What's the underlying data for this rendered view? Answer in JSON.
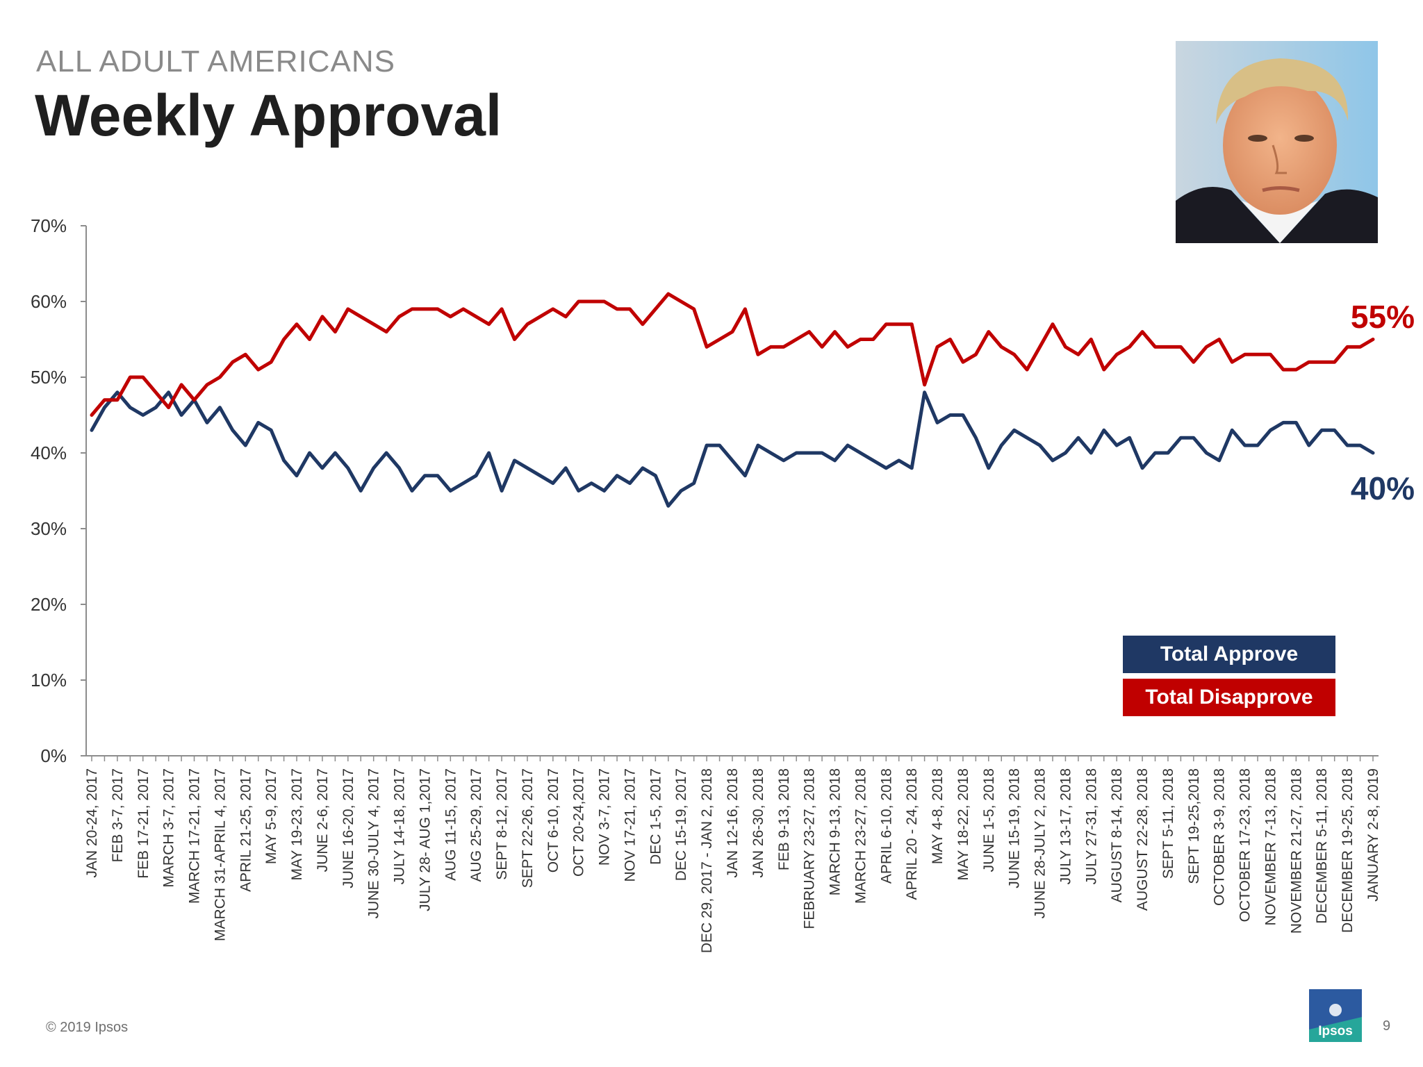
{
  "header": {
    "subtitle": "ALL ADULT AMERICANS",
    "title": "Weekly Approval"
  },
  "chart_data": {
    "type": "line",
    "title": "Weekly Approval",
    "ylim": [
      0,
      70
    ],
    "y_ticks": [
      "0%",
      "10%",
      "20%",
      "30%",
      "40%",
      "50%",
      "60%",
      "70%"
    ],
    "x_tick_labels": [
      "JAN 20-24, 2017",
      "FEB 3-7, 2017",
      "FEB 17-21, 2017",
      "MARCH 3-7, 2017",
      "MARCH 17-21, 2017",
      "MARCH 31-APRIL 4, 2017",
      "APRIL 21-25, 2017",
      "MAY 5-9, 2017",
      "MAY 19-23, 2017",
      "JUNE 2-6, 2017",
      "JUNE 16-20, 2017",
      "JUNE 30-JULY 4, 2017",
      "JULY 14-18, 2017",
      "JULY 28- AUG 1,2017",
      "AUG 11-15, 2017",
      "AUG 25-29, 2017",
      "SEPT 8-12, 2017",
      "SEPT 22-26, 2017",
      "OCT 6-10, 2017",
      "OCT 20-24,2017",
      "NOV 3-7, 2017",
      "NOV 17-21, 2017",
      "DEC 1-5, 2017",
      "DEC 15-19, 2017",
      "DEC 29, 2017 - JAN 2, 2018",
      "JAN 12-16, 2018",
      "JAN 26-30, 2018",
      "FEB 9-13, 2018",
      "FEBRUARY 23-27, 2018",
      "MARCH 9-13, 2018",
      "MARCH 23-27, 2018",
      "APRIL 6-10, 2018",
      "APRIL 20 - 24, 2018",
      "MAY 4-8, 2018",
      "MAY 18-22, 2018",
      "JUNE 1-5, 2018",
      "JUNE 15-19, 2018",
      "JUNE 28-JULY 2, 2018",
      "JULY 13-17, 2018",
      "JULY 27-31, 2018",
      "AUGUST 8-14, 2018",
      "AUGUST 22-28, 2018",
      "SEPT 5-11, 2018",
      "SEPT 19-25,2018",
      "OCTOBER 3-9, 2018",
      "OCTOBER 17-23, 2018",
      "NOVEMBER 7-13, 2018",
      "NOVEMBER 21-27, 2018",
      "DECEMBER 5-11, 2018",
      "DECEMBER 19-25, 2018",
      "JANUARY 2-8, 2019"
    ],
    "series": [
      {
        "name": "Total Approve",
        "color": "#1f3864",
        "values": [
          43,
          46,
          48,
          46,
          45,
          46,
          48,
          45,
          47,
          44,
          46,
          43,
          41,
          44,
          43,
          39,
          37,
          40,
          38,
          40,
          38,
          35,
          38,
          40,
          38,
          35,
          37,
          37,
          35,
          36,
          37,
          40,
          35,
          39,
          38,
          37,
          36,
          38,
          35,
          36,
          35,
          37,
          36,
          38,
          37,
          33,
          35,
          36,
          41,
          41,
          39,
          37,
          41,
          40,
          39,
          40,
          40,
          40,
          39,
          41,
          40,
          39,
          38,
          39,
          38,
          48,
          44,
          45,
          45,
          42,
          38,
          41,
          43,
          42,
          41,
          39,
          40,
          42,
          40,
          43,
          41,
          42,
          38,
          40,
          40,
          42,
          42,
          40,
          39,
          43,
          41,
          41,
          43,
          44,
          44,
          41,
          43,
          43,
          41,
          41,
          40
        ]
      },
      {
        "name": "Total Disapprove",
        "color": "#c00000",
        "values": [
          45,
          47,
          47,
          50,
          50,
          48,
          46,
          49,
          47,
          49,
          50,
          52,
          53,
          51,
          52,
          55,
          57,
          55,
          58,
          56,
          59,
          58,
          57,
          56,
          58,
          59,
          59,
          59,
          58,
          59,
          58,
          57,
          59,
          55,
          57,
          58,
          59,
          58,
          60,
          60,
          60,
          59,
          59,
          57,
          59,
          61,
          60,
          59,
          54,
          55,
          56,
          59,
          53,
          54,
          54,
          55,
          56,
          54,
          56,
          54,
          55,
          55,
          57,
          57,
          57,
          49,
          54,
          55,
          52,
          53,
          56,
          54,
          53,
          51,
          54,
          57,
          54,
          53,
          55,
          51,
          53,
          54,
          56,
          54,
          54,
          54,
          52,
          54,
          55,
          52,
          53,
          53,
          53,
          51,
          51,
          52,
          52,
          52,
          54,
          54,
          55
        ]
      }
    ],
    "end_labels": {
      "approve": "40%",
      "disapprove": "55%"
    },
    "legend": {
      "approve": "Total Approve",
      "disapprove": "Total Disapprove",
      "position": "bottom-right"
    }
  },
  "footer": {
    "copyright": "© 2019 Ipsos",
    "page_number": "9",
    "logo_text": "Ipsos"
  }
}
